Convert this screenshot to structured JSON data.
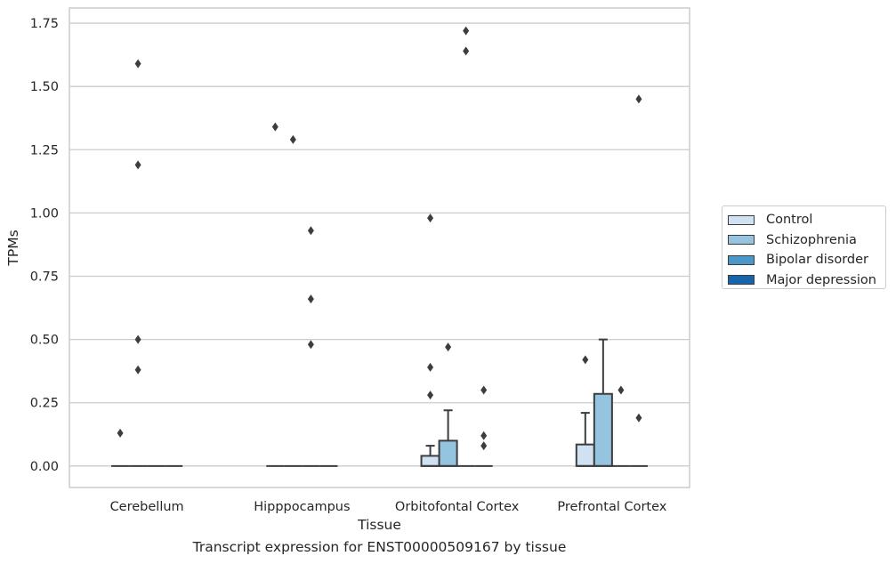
{
  "chart_data": {
    "type": "box",
    "xlabel": "Tissue",
    "ylabel": "TPMs",
    "caption": "Transcript expression for ENST00000509167 by tissue",
    "categories": [
      "Cerebellum",
      "Hipppocampus",
      "Orbitofontal Cortex",
      "Prefrontal Cortex"
    ],
    "ylim": [
      -0.085,
      1.81
    ],
    "yticks": [
      0.0,
      0.25,
      0.5,
      0.75,
      1.0,
      1.25,
      1.5,
      1.75
    ],
    "ytick_labels": [
      "0.00",
      "0.25",
      "0.50",
      "0.75",
      "1.00",
      "1.25",
      "1.50",
      "1.75"
    ],
    "grid": "horizontal",
    "legend_position": "right",
    "series": [
      {
        "name": "Control",
        "color": "#d0e1f2",
        "boxes": [
          {
            "q1": 0,
            "median": 0,
            "q3": 0,
            "whisker_low": 0,
            "whisker_high": 0,
            "outliers": [
              0.13
            ]
          },
          {
            "q1": 0,
            "median": 0,
            "q3": 0,
            "whisker_low": 0,
            "whisker_high": 0,
            "outliers": [
              1.34
            ]
          },
          {
            "q1": 0,
            "median": 0,
            "q3": 0.04,
            "whisker_low": 0,
            "whisker_high": 0.08,
            "outliers": [
              0.28,
              0.39,
              0.98
            ]
          },
          {
            "q1": 0,
            "median": 0,
            "q3": 0.085,
            "whisker_low": 0,
            "whisker_high": 0.21,
            "outliers": [
              0.42
            ]
          }
        ]
      },
      {
        "name": "Schizophrenia",
        "color": "#94c4df",
        "boxes": [
          {
            "q1": 0,
            "median": 0,
            "q3": 0,
            "whisker_low": 0,
            "whisker_high": 0,
            "outliers": [
              0.38,
              0.5,
              1.19,
              1.59
            ]
          },
          {
            "q1": 0,
            "median": 0,
            "q3": 0,
            "whisker_low": 0,
            "whisker_high": 0,
            "outliers": [
              1.29
            ]
          },
          {
            "q1": 0,
            "median": 0,
            "q3": 0.1,
            "whisker_low": 0,
            "whisker_high": 0.22,
            "outliers": [
              0.47
            ]
          },
          {
            "q1": 0,
            "median": 0,
            "q3": 0.285,
            "whisker_low": 0,
            "whisker_high": 0.5,
            "outliers": []
          }
        ]
      },
      {
        "name": "Bipolar disorder",
        "color": "#4a98c9",
        "boxes": [
          {
            "q1": 0,
            "median": 0,
            "q3": 0,
            "whisker_low": 0,
            "whisker_high": 0,
            "outliers": []
          },
          {
            "q1": 0,
            "median": 0,
            "q3": 0,
            "whisker_low": 0,
            "whisker_high": 0,
            "outliers": [
              0.48,
              0.66,
              0.93
            ]
          },
          {
            "q1": 0,
            "median": 0,
            "q3": 0,
            "whisker_low": 0,
            "whisker_high": 0,
            "outliers": [
              1.64,
              1.72
            ]
          },
          {
            "q1": 0,
            "median": 0,
            "q3": 0,
            "whisker_low": 0,
            "whisker_high": 0,
            "outliers": [
              0.3
            ]
          }
        ]
      },
      {
        "name": "Major depression",
        "color": "#1764ab",
        "boxes": [
          {
            "q1": 0,
            "median": 0,
            "q3": 0,
            "whisker_low": 0,
            "whisker_high": 0,
            "outliers": []
          },
          {
            "q1": 0,
            "median": 0,
            "q3": 0,
            "whisker_low": 0,
            "whisker_high": 0,
            "outliers": []
          },
          {
            "q1": 0,
            "median": 0,
            "q3": 0,
            "whisker_low": 0,
            "whisker_high": 0,
            "outliers": [
              0.08,
              0.12,
              0.3
            ]
          },
          {
            "q1": 0,
            "median": 0,
            "q3": 0,
            "whisker_low": 0,
            "whisker_high": 0,
            "outliers": [
              0.19,
              1.45
            ]
          }
        ]
      }
    ]
  }
}
